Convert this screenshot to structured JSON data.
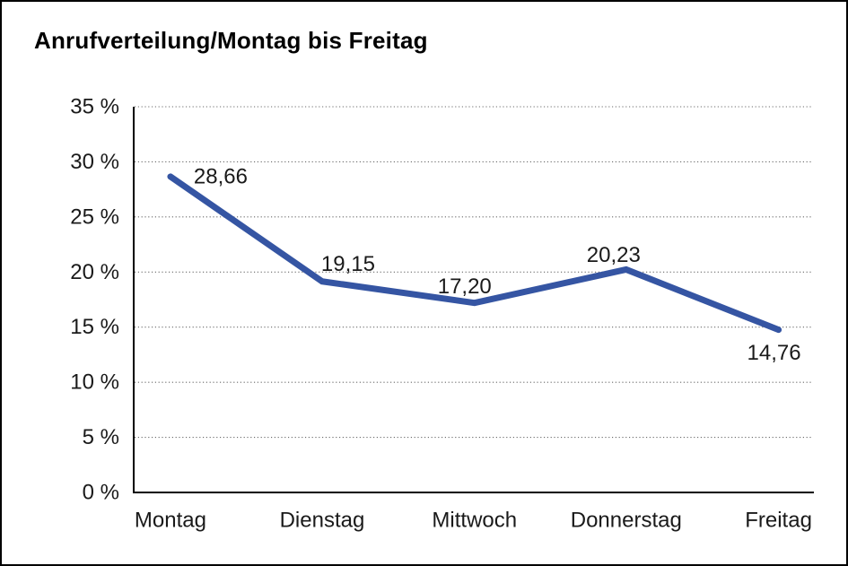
{
  "chart_data": {
    "type": "line",
    "title": "Anrufverteilung/Montag bis Freitag",
    "categories": [
      "Montag",
      "Dienstag",
      "Mittwoch",
      "Donnerstag",
      "Freitag"
    ],
    "values": [
      28.66,
      19.15,
      17.2,
      20.23,
      14.76
    ],
    "value_labels": [
      "28,66",
      "19,15",
      "17,20",
      "20,23",
      "14,76"
    ],
    "ylim": [
      0,
      35
    ],
    "ytick_step": 5,
    "ytick_labels": [
      "0 %",
      "5 %",
      "10 %",
      "15 %",
      "20 %",
      "25 %",
      "30 %",
      "35 %"
    ],
    "xlabel": "",
    "ylabel": "",
    "grid": "horizontal-dotted",
    "legend": "none",
    "colors": {
      "line": "#3555A3",
      "text": "#1a1a1a",
      "grid": "#6b6b6b",
      "axis": "#000000",
      "background": "#ffffff",
      "border": "#000000"
    }
  }
}
